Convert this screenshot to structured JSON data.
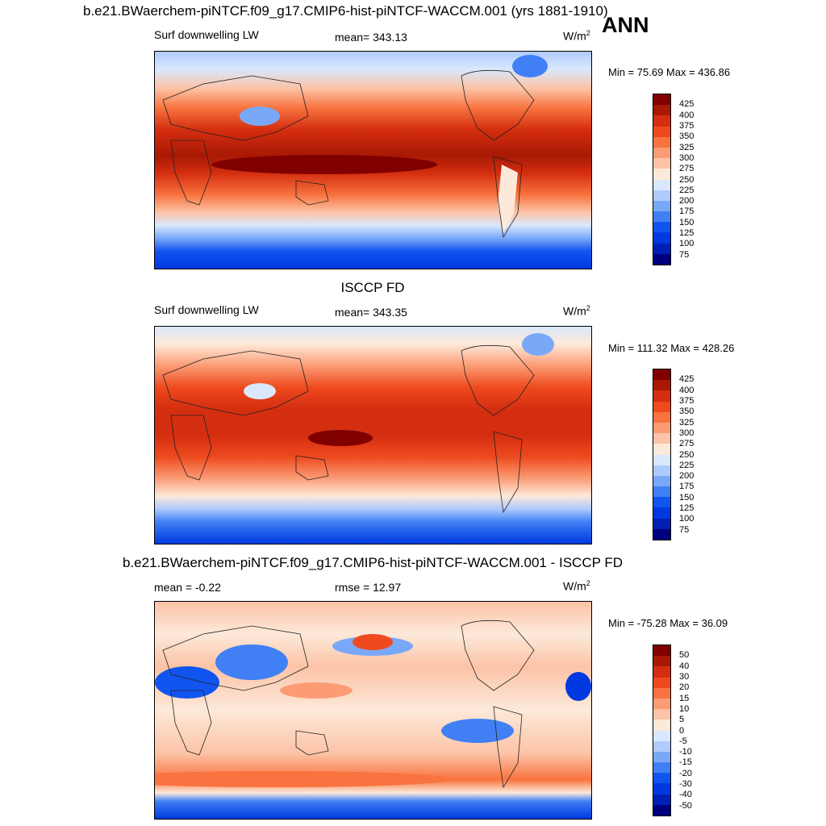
{
  "figure": {
    "main_title": "b.e21.BWaerchem-piNTCF.f09_g17.CMIP6-hist-piNTCF-WACCM.001 (yrs 1881-1910)",
    "season_label": "ANN"
  },
  "colors": {
    "full_field": [
      "#00007f",
      "#001fb4",
      "#0038e0",
      "#1155f0",
      "#4080f4",
      "#7aa8f8",
      "#aecbfc",
      "#d9e8fc",
      "#fde9d9",
      "#fcc3a6",
      "#fb9c75",
      "#f8733f",
      "#ee4a1e",
      "#d42e10",
      "#a81904",
      "#800000"
    ],
    "difference": [
      "#00007f",
      "#001fb4",
      "#0038e0",
      "#1155f0",
      "#4080f4",
      "#7aa8f8",
      "#aecbfc",
      "#d9e8fc",
      "#fde9d9",
      "#fcc3a6",
      "#fb9c75",
      "#f8733f",
      "#ee4a1e",
      "#d42e10",
      "#a81904",
      "#800000"
    ]
  },
  "chart_data": [
    {
      "type": "heatmap",
      "subtitle": "",
      "variable_label": "Surf downwelling LW",
      "stat_label": "mean= 343.13",
      "units_label": "W/m",
      "units_power": "2",
      "minmax_label": "Min =  75.69 Max = 436.86",
      "colorbar_levels": [
        "425",
        "400",
        "375",
        "350",
        "325",
        "300",
        "275",
        "250",
        "225",
        "200",
        "175",
        "150",
        "125",
        "100",
        "75"
      ],
      "mean": 343.13,
      "min": 75.69,
      "max": 436.86
    },
    {
      "type": "heatmap",
      "subtitle": "ISCCP FD",
      "variable_label": "Surf downwelling LW",
      "stat_label": "mean= 343.35",
      "units_label": "W/m",
      "units_power": "2",
      "minmax_label": "Min = 111.32 Max = 428.26",
      "colorbar_levels": [
        "425",
        "400",
        "375",
        "350",
        "325",
        "300",
        "275",
        "250",
        "225",
        "200",
        "175",
        "150",
        "125",
        "100",
        "75"
      ],
      "mean": 343.35,
      "min": 111.32,
      "max": 428.26
    },
    {
      "type": "heatmap",
      "subtitle": "b.e21.BWaerchem-piNTCF.f09_g17.CMIP6-hist-piNTCF-WACCM.001 - ISCCP FD",
      "variable_label": "mean =  -0.22",
      "stat_label": "rmse =  12.97",
      "units_label": "W/m",
      "units_power": "2",
      "minmax_label": "Min = -75.28 Max =  36.09",
      "colorbar_levels": [
        "50",
        "40",
        "30",
        "20",
        "15",
        "10",
        "5",
        "0",
        "-5",
        "-10",
        "-15",
        "-20",
        "-30",
        "-40",
        "-50"
      ],
      "mean": -0.22,
      "rmse": 12.97,
      "min": -75.28,
      "max": 36.09
    }
  ]
}
